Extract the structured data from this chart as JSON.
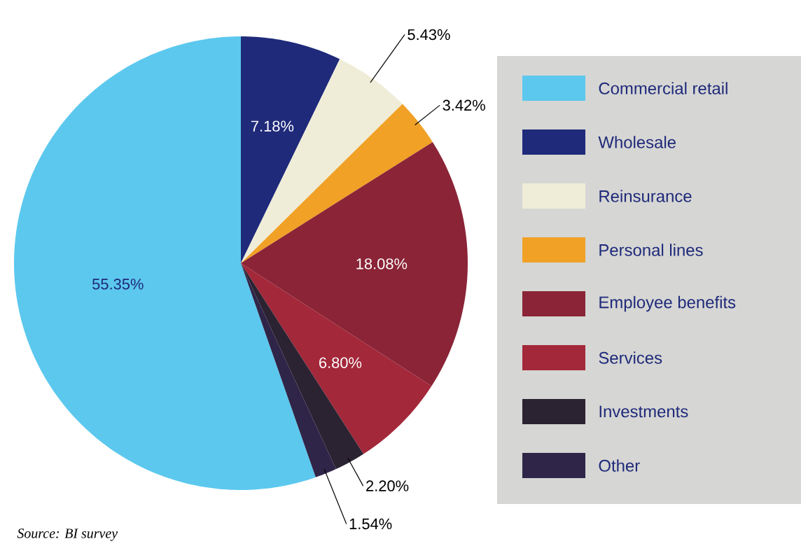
{
  "chart_data": {
    "type": "pie",
    "categories": [
      "Commercial retail",
      "Wholesale",
      "Reinsurance",
      "Personal lines",
      "Employee benefits",
      "Services",
      "Investments",
      "Other"
    ],
    "values": [
      55.35,
      7.18,
      5.43,
      3.42,
      18.08,
      6.8,
      2.2,
      1.54
    ],
    "value_labels": [
      "55.35%",
      "7.18%",
      "5.43%",
      "3.42%",
      "18.08%",
      "6.80%",
      "2.20%",
      "1.54%"
    ],
    "colors": [
      "#5cc8ee",
      "#1f2a7a",
      "#efedd8",
      "#f0a126",
      "#8a2436",
      "#a3283a",
      "#2b2232",
      "#2f2548"
    ],
    "legend": "right",
    "annotations": [
      "*Source: BI survey*"
    ]
  }
}
